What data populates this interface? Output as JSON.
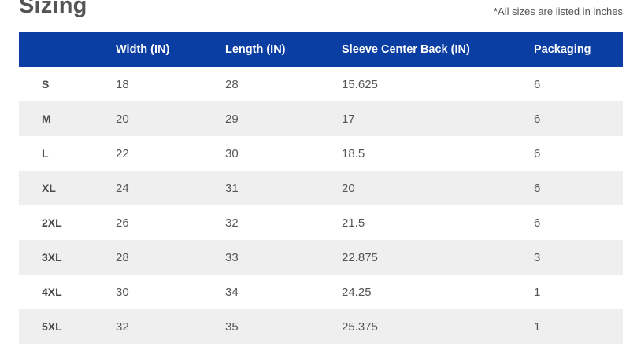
{
  "title": "Sizing",
  "note": "*All sizes are listed in inches",
  "headers": [
    "",
    "Width (IN)",
    "Length (IN)",
    "Sleeve Center Back (IN)",
    "Packaging"
  ],
  "rows": [
    [
      "S",
      "18",
      "28",
      "15.625",
      "6"
    ],
    [
      "M",
      "20",
      "29",
      "17",
      "6"
    ],
    [
      "L",
      "22",
      "30",
      "18.5",
      "6"
    ],
    [
      "XL",
      "24",
      "31",
      "20",
      "6"
    ],
    [
      "2XL",
      "26",
      "32",
      "21.5",
      "6"
    ],
    [
      "3XL",
      "28",
      "33",
      "22.875",
      "3"
    ],
    [
      "4XL",
      "30",
      "34",
      "24.25",
      "1"
    ],
    [
      "5XL",
      "32",
      "35",
      "25.375",
      "1"
    ]
  ],
  "colors": {
    "header_bg": "#0a3ea3",
    "stripe_bg": "#efeff0"
  }
}
